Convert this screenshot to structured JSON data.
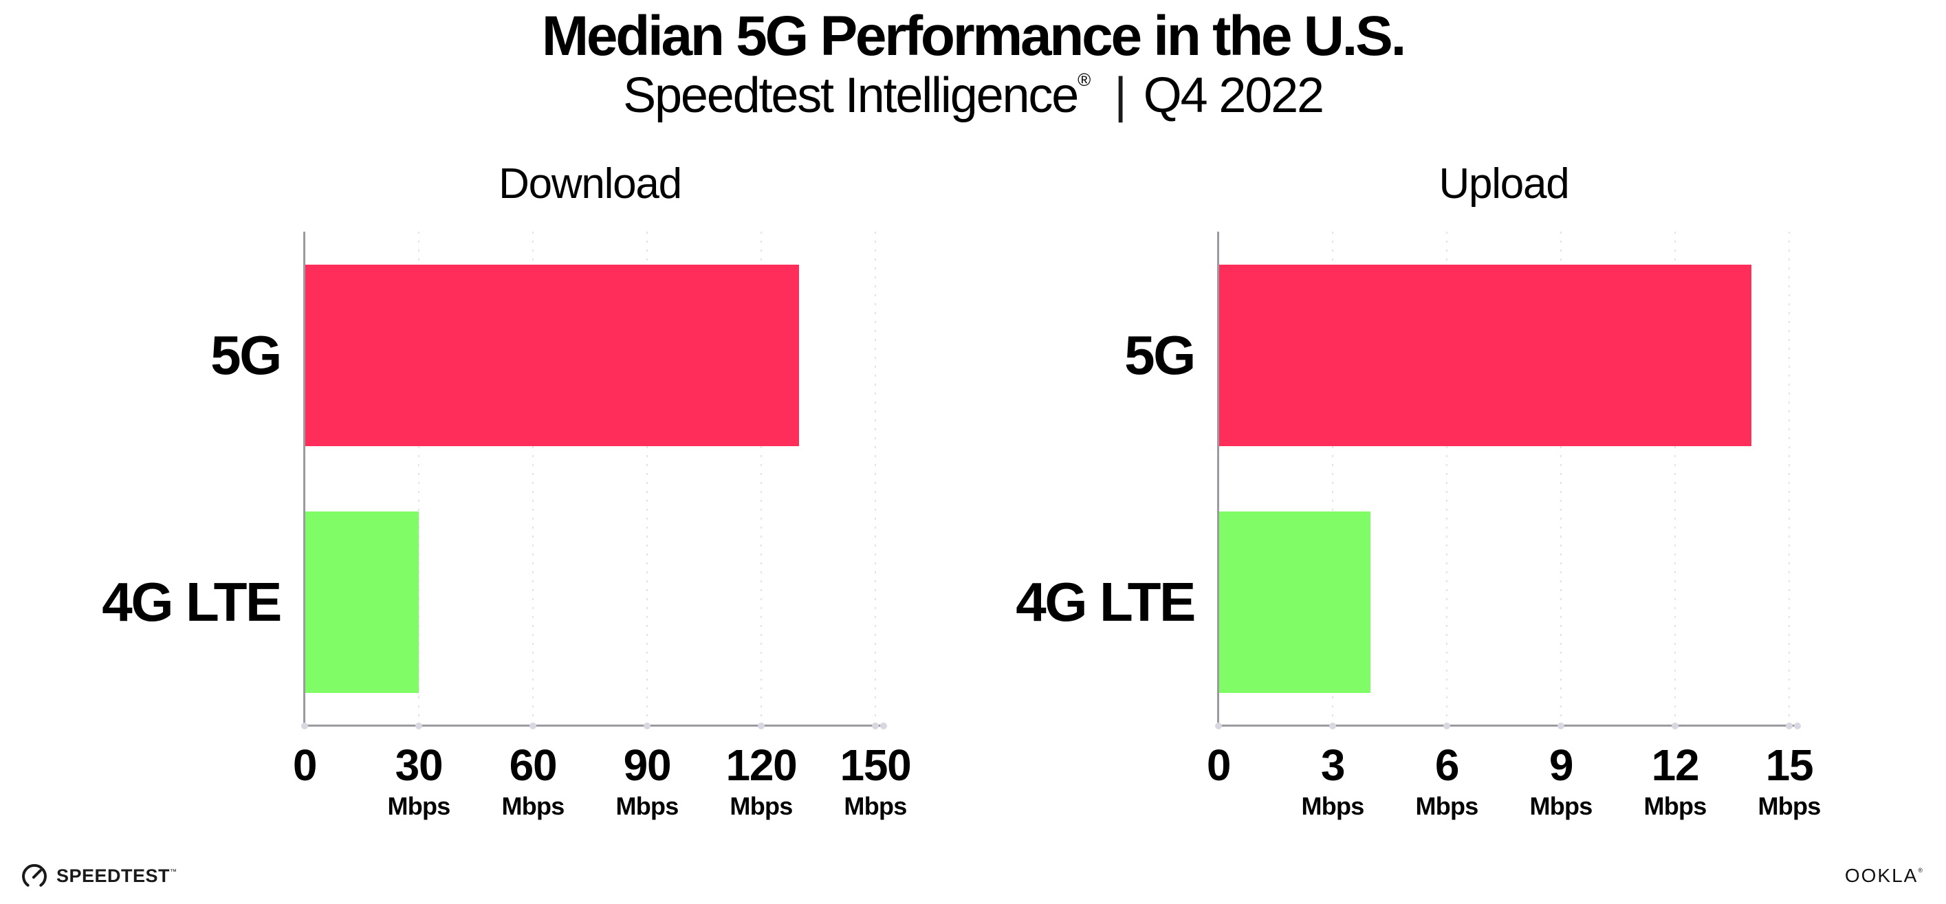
{
  "header": {
    "title": "Median 5G Performance in the U.S.",
    "subtitle": {
      "brand": "Speedtest Intelligence",
      "registered_mark": "®",
      "separator": "|",
      "period": "Q4 2022"
    }
  },
  "chart_data": [
    {
      "type": "bar",
      "orientation": "horizontal",
      "title": "Download",
      "categories": [
        "5G",
        "4G LTE"
      ],
      "values": [
        130,
        30
      ],
      "unit": "Mbps",
      "xlim": [
        0,
        150
      ],
      "xticks": [
        0,
        30,
        60,
        90,
        120,
        150
      ],
      "bar_colors": [
        "#FF2D5A",
        "#80FC67"
      ],
      "legend": "none",
      "grid": "vertical-dotted"
    },
    {
      "type": "bar",
      "orientation": "horizontal",
      "title": "Upload",
      "categories": [
        "5G",
        "4G LTE"
      ],
      "values": [
        14,
        4
      ],
      "unit": "Mbps",
      "xlim": [
        0,
        15
      ],
      "xticks": [
        0,
        3,
        6,
        9,
        12,
        15
      ],
      "bar_colors": [
        "#FF2D5A",
        "#80FC67"
      ],
      "legend": "none",
      "grid": "vertical-dotted"
    }
  ],
  "footer": {
    "speedtest_logo_text": "SPEEDTEST",
    "speedtest_trademark": "™",
    "speedtest_gauge_icon": "speedtest-gauge-icon",
    "ookla_logo_text": "OOKLA",
    "ookla_registered_mark": "®"
  },
  "colors": {
    "bar_5g": "#FF2D5A",
    "bar_4g_lte": "#80FC67",
    "axis_line": "#9A9AA0",
    "gridline": "#E2E2EC",
    "axis_dot": "#D8D8E2",
    "text": "#000000",
    "background": "#FFFFFF"
  }
}
